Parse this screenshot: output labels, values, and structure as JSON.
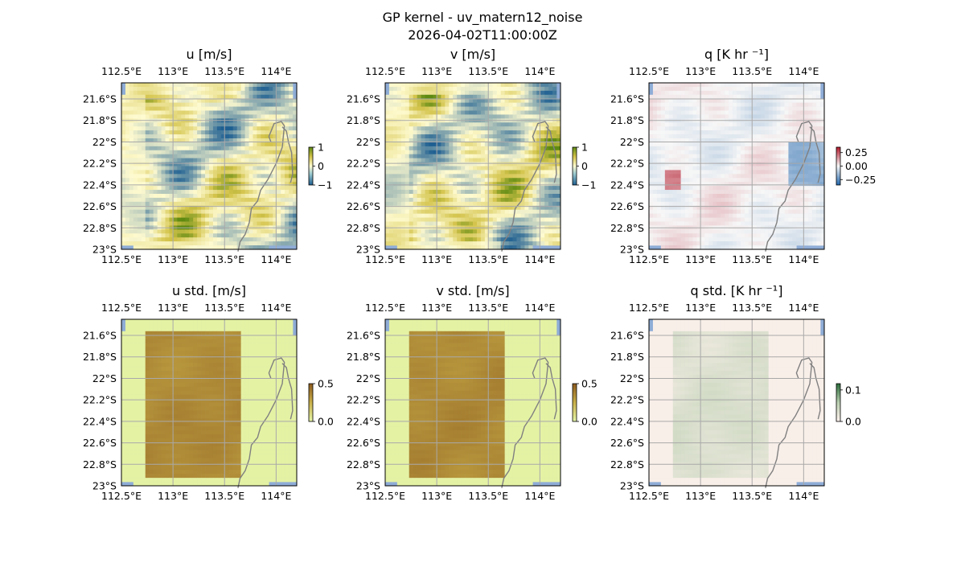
{
  "figure": {
    "title_line1": "GP kernel - uv_matern12_noise",
    "title_line2": "2026-04-02T11:00:00Z"
  },
  "colors": {
    "ocean": "#8eacd6",
    "gridline": "#a9a9a9",
    "coastline": "#808080",
    "mean_wind_low": "#1e5f91",
    "mean_wind_mid": "#fffbd0",
    "mean_wind_high": "#5e8a12",
    "std_wind_low": "#e5f5a8",
    "std_wind_high": "#8c5a1e",
    "heating_neg": "#2166ac",
    "heating_mid": "#f7f7f7",
    "heating_pos": "#b2182b",
    "heating_std_low": "#fff2ee",
    "heating_std_high": "#2a6b3a"
  },
  "chart_data": [
    {
      "type": "heatmap",
      "title": "u [m/s]",
      "x_ticks": [
        "112.5°E",
        "113°E",
        "113.5°E",
        "114°E"
      ],
      "y_ticks": [
        "21.6°S",
        "21.8°S",
        "22°S",
        "22.2°S",
        "22.4°S",
        "22.6°S",
        "22.8°S",
        "23°S"
      ],
      "xlim": [
        112.5,
        114.2
      ],
      "ylim": [
        -23.0,
        -21.45
      ],
      "colorbar": {
        "ticks": [
          "1",
          "0",
          "−1"
        ],
        "range": [
          -1,
          1
        ]
      },
      "colormap": "mean_wind"
    },
    {
      "type": "heatmap",
      "title": "v [m/s]",
      "x_ticks": [
        "112.5°E",
        "113°E",
        "113.5°E",
        "114°E"
      ],
      "y_ticks": [
        "21.6°S",
        "21.8°S",
        "22°S",
        "22.2°S",
        "22.4°S",
        "22.6°S",
        "22.8°S",
        "23°S"
      ],
      "xlim": [
        112.5,
        114.2
      ],
      "ylim": [
        -23.0,
        -21.45
      ],
      "colorbar": {
        "ticks": [
          "1",
          "0",
          "−1"
        ],
        "range": [
          -1,
          1
        ]
      },
      "colormap": "mean_wind"
    },
    {
      "type": "heatmap",
      "title": "q [K hr ⁻¹]",
      "x_ticks": [
        "112.5°E",
        "113°E",
        "113.5°E",
        "114°E"
      ],
      "y_ticks": [
        "21.6°S",
        "21.8°S",
        "22°S",
        "22.2°S",
        "22.4°S",
        "22.6°S",
        "22.8°S",
        "23°S"
      ],
      "xlim": [
        112.5,
        114.2
      ],
      "ylim": [
        -23.0,
        -21.45
      ],
      "colorbar": {
        "ticks": [
          "0.25",
          "0.00",
          "−0.25"
        ],
        "range": [
          -0.35,
          0.35
        ]
      },
      "colormap": "heating"
    },
    {
      "type": "heatmap",
      "title": "u std. [m/s]",
      "x_ticks": [
        "112.5°E",
        "113°E",
        "113.5°E",
        "114°E"
      ],
      "y_ticks": [
        "21.6°S",
        "21.8°S",
        "22°S",
        "22.2°S",
        "22.4°S",
        "22.6°S",
        "22.8°S",
        "23°S"
      ],
      "xlim": [
        112.5,
        114.2
      ],
      "ylim": [
        -23.0,
        -21.45
      ],
      "colorbar": {
        "ticks": [
          "0.5",
          "0.0"
        ],
        "range": [
          0,
          0.5
        ]
      },
      "colormap": "std_wind"
    },
    {
      "type": "heatmap",
      "title": "v std. [m/s]",
      "x_ticks": [
        "112.5°E",
        "113°E",
        "113.5°E",
        "114°E"
      ],
      "y_ticks": [
        "21.6°S",
        "21.8°S",
        "22°S",
        "22.2°S",
        "22.4°S",
        "22.6°S",
        "22.8°S",
        "23°S"
      ],
      "xlim": [
        112.5,
        114.2
      ],
      "ylim": [
        -23.0,
        -21.45
      ],
      "colorbar": {
        "ticks": [
          "0.5",
          "0.0"
        ],
        "range": [
          0,
          0.5
        ]
      },
      "colormap": "std_wind"
    },
    {
      "type": "heatmap",
      "title": "q std. [K hr ⁻¹]",
      "x_ticks": [
        "112.5°E",
        "113°E",
        "113.5°E",
        "114°E"
      ],
      "y_ticks": [
        "21.6°S",
        "21.8°S",
        "22°S",
        "22.2°S",
        "22.4°S",
        "22.6°S",
        "22.8°S",
        "23°S"
      ],
      "xlim": [
        112.5,
        114.2
      ],
      "ylim": [
        -23.0,
        -21.45
      ],
      "colorbar": {
        "ticks": [
          "0.1",
          "0.0"
        ],
        "range": [
          0,
          0.12
        ]
      },
      "colormap": "heating_std"
    }
  ]
}
